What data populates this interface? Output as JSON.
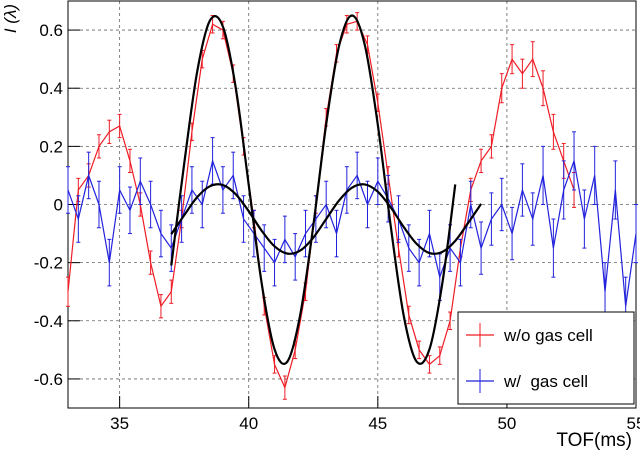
{
  "chart_data": {
    "type": "errorbar-line",
    "x_label": "TOF(ms)",
    "y_label": "I (λ)",
    "xlim": [
      33,
      55
    ],
    "ylim": [
      -0.7,
      0.7
    ],
    "xticks": [
      35,
      40,
      45,
      50,
      55
    ],
    "yticks": [
      -0.6,
      -0.4,
      -0.2,
      0,
      0.2,
      0.4,
      0.6
    ],
    "grid": true,
    "legend": "bottom-right",
    "series": [
      {
        "name": "w/o gas cell",
        "color": "#ee1c25",
        "x": [
          33.0,
          33.4,
          33.8,
          34.2,
          34.6,
          35.0,
          35.4,
          35.8,
          36.2,
          36.6,
          37.0,
          37.4,
          37.8,
          38.2,
          38.6,
          39.0,
          39.4,
          39.8,
          40.2,
          40.6,
          41.0,
          41.4,
          41.8,
          42.2,
          42.6,
          43.0,
          43.4,
          43.8,
          44.2,
          44.6,
          45.0,
          45.4,
          45.8,
          46.2,
          46.6,
          47.0,
          47.4,
          47.8,
          48.2,
          48.6,
          49.0,
          49.4,
          49.8,
          50.2,
          50.6,
          51.0,
          51.4,
          51.8,
          52.2,
          52.6
        ],
        "values": [
          -0.3,
          0.05,
          0.1,
          0.2,
          0.25,
          0.27,
          0.15,
          0.0,
          -0.2,
          -0.35,
          -0.3,
          -0.05,
          0.25,
          0.5,
          0.62,
          0.6,
          0.45,
          0.2,
          -0.05,
          -0.35,
          -0.55,
          -0.63,
          -0.5,
          -0.3,
          0.0,
          0.3,
          0.52,
          0.62,
          0.63,
          0.55,
          0.35,
          0.1,
          -0.15,
          -0.38,
          -0.5,
          -0.55,
          -0.52,
          -0.4,
          -0.15,
          0.05,
          0.15,
          0.2,
          0.4,
          0.5,
          0.45,
          0.5,
          0.4,
          0.25,
          0.15,
          0.05
        ],
        "errors": [
          0.05,
          0.04,
          0.04,
          0.04,
          0.04,
          0.04,
          0.04,
          0.04,
          0.04,
          0.04,
          0.04,
          0.03,
          0.03,
          0.03,
          0.03,
          0.03,
          0.03,
          0.03,
          0.03,
          0.03,
          0.03,
          0.04,
          0.03,
          0.03,
          0.03,
          0.03,
          0.03,
          0.03,
          0.03,
          0.03,
          0.03,
          0.03,
          0.03,
          0.03,
          0.03,
          0.03,
          0.03,
          0.03,
          0.03,
          0.04,
          0.04,
          0.04,
          0.05,
          0.05,
          0.05,
          0.06,
          0.06,
          0.06,
          0.06,
          0.06
        ]
      },
      {
        "name": "w/  gas cell",
        "color": "#2222dd",
        "x": [
          33.0,
          33.4,
          33.8,
          34.2,
          34.6,
          35.0,
          35.4,
          35.8,
          36.2,
          36.6,
          37.0,
          37.4,
          37.8,
          38.2,
          38.6,
          39.0,
          39.4,
          39.8,
          40.2,
          40.6,
          41.0,
          41.4,
          41.8,
          42.2,
          42.6,
          43.0,
          43.4,
          43.8,
          44.2,
          44.6,
          45.0,
          45.4,
          45.8,
          46.2,
          46.6,
          47.0,
          47.4,
          47.8,
          48.2,
          48.6,
          49.0,
          49.4,
          49.8,
          50.2,
          50.6,
          51.0,
          51.4,
          51.8,
          52.2,
          52.6,
          53.0,
          53.4,
          53.8,
          54.2,
          54.6,
          55.0
        ],
        "values": [
          0.05,
          -0.05,
          0.1,
          0.0,
          -0.2,
          0.05,
          -0.02,
          0.08,
          0.0,
          -0.1,
          -0.15,
          -0.05,
          0.05,
          0.0,
          0.15,
          0.05,
          0.1,
          -0.05,
          -0.1,
          -0.15,
          -0.2,
          -0.12,
          -0.18,
          -0.1,
          -0.05,
          0.0,
          -0.1,
          0.05,
          0.1,
          0.0,
          0.08,
          0.02,
          -0.05,
          -0.15,
          -0.2,
          -0.1,
          -0.25,
          -0.15,
          -0.2,
          0.0,
          -0.15,
          -0.05,
          0.0,
          -0.1,
          0.05,
          -0.05,
          0.1,
          -0.15,
          0.05,
          0.15,
          -0.05,
          0.1,
          -0.3,
          0.05,
          -0.35,
          -0.1
        ],
        "errors": [
          0.08,
          0.08,
          0.08,
          0.08,
          0.08,
          0.08,
          0.08,
          0.08,
          0.08,
          0.08,
          0.08,
          0.08,
          0.08,
          0.08,
          0.08,
          0.08,
          0.08,
          0.08,
          0.08,
          0.08,
          0.08,
          0.08,
          0.08,
          0.08,
          0.08,
          0.08,
          0.08,
          0.08,
          0.08,
          0.08,
          0.08,
          0.08,
          0.08,
          0.08,
          0.08,
          0.08,
          0.08,
          0.08,
          0.08,
          0.08,
          0.09,
          0.09,
          0.09,
          0.09,
          0.09,
          0.09,
          0.1,
          0.1,
          0.1,
          0.1,
          0.1,
          0.1,
          0.1,
          0.1,
          0.1,
          0.1
        ]
      },
      {
        "color": "#000000",
        "x": [
          37,
          37.5,
          38,
          38.5,
          39,
          39.5,
          40,
          40.5,
          41,
          41.5,
          42,
          42.5,
          43,
          43.5,
          44,
          44.5,
          45,
          45.5,
          46,
          46.5,
          47,
          47.5,
          48
        ],
        "values": [
          -0.21,
          0.14,
          0.455,
          0.633,
          0.612,
          0.4,
          0.067,
          -0.27,
          -0.498,
          -0.54,
          -0.377,
          -0.074,
          0.276,
          0.546,
          0.65,
          0.547,
          0.274,
          -0.074,
          -0.381,
          -0.54,
          -0.498,
          -0.27,
          0.069
        ]
      },
      {
        "color": "#000000",
        "x": [
          37,
          37.5,
          38,
          38.5,
          39,
          39.5,
          40,
          40.5,
          41,
          41.5,
          42,
          42.5,
          43,
          43.5,
          44,
          44.5,
          45,
          45.5,
          46,
          46.5,
          47,
          47.5,
          48,
          48.5,
          49
        ],
        "values": [
          -0.102,
          -0.037,
          0.025,
          0.063,
          0.067,
          0.035,
          -0.023,
          -0.09,
          -0.144,
          -0.169,
          -0.158,
          -0.114,
          -0.05,
          0.014,
          0.058,
          0.069,
          0.044,
          -0.01,
          -0.077,
          -0.135,
          -0.167,
          -0.163,
          -0.125,
          -0.063,
          0.002
        ]
      }
    ]
  }
}
